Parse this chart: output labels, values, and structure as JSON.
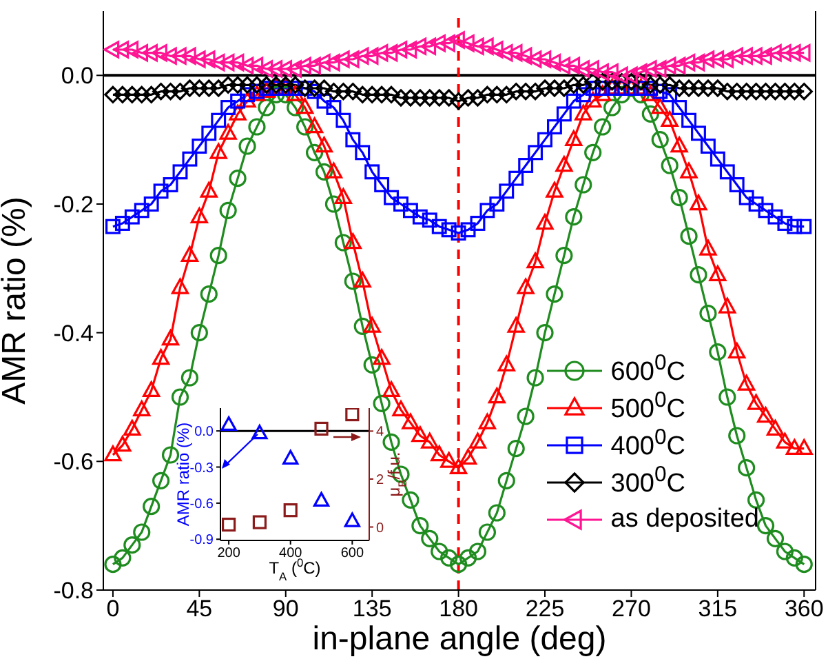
{
  "chart_data": [
    {
      "type": "line",
      "xlabel": "in-plane angle (deg)",
      "ylabel": "AMR ratio (%)",
      "x": [
        0,
        5,
        10,
        15,
        20,
        25,
        30,
        35,
        40,
        45,
        50,
        55,
        60,
        65,
        70,
        75,
        80,
        85,
        90,
        95,
        100,
        105,
        110,
        115,
        120,
        125,
        130,
        135,
        140,
        145,
        150,
        155,
        160,
        165,
        170,
        175,
        180,
        185,
        190,
        195,
        200,
        205,
        210,
        215,
        220,
        225,
        230,
        235,
        240,
        245,
        250,
        255,
        260,
        265,
        270,
        275,
        280,
        285,
        290,
        295,
        300,
        305,
        310,
        315,
        320,
        325,
        330,
        335,
        340,
        345,
        350,
        355,
        360
      ],
      "xlim": [
        -5,
        366
      ],
      "xticks": [
        0,
        45,
        90,
        135,
        180,
        225,
        270,
        315,
        360
      ],
      "ylim": [
        -0.8,
        0.1
      ],
      "yticks": [
        -0.8,
        -0.6,
        -0.4,
        -0.2,
        {
          "value": 0,
          "label": "0.0"
        }
      ],
      "legend": "bottom right",
      "line_style": "solid",
      "ref_lines": [
        {
          "axis": "y",
          "value": 0,
          "color": "#000000",
          "line_style": "solid"
        },
        {
          "axis": "x",
          "value": 180,
          "color": "#ff0000",
          "line_style": "dashed"
        }
      ],
      "series": [
        {
          "name": "600$^{0}$C",
          "color": "#1f8c1f",
          "marker": "circle",
          "values": [
            -0.76,
            -0.75,
            -0.73,
            -0.71,
            -0.67,
            -0.63,
            -0.59,
            -0.5,
            -0.47,
            -0.4,
            -0.34,
            -0.28,
            -0.21,
            -0.16,
            -0.11,
            -0.08,
            -0.05,
            -0.03,
            -0.03,
            -0.05,
            -0.08,
            -0.12,
            -0.15,
            -0.2,
            -0.26,
            -0.32,
            -0.39,
            -0.45,
            -0.51,
            -0.57,
            -0.62,
            -0.66,
            -0.7,
            -0.72,
            -0.74,
            -0.75,
            -0.76,
            -0.75,
            -0.74,
            -0.71,
            -0.68,
            -0.63,
            -0.58,
            -0.53,
            -0.47,
            -0.4,
            -0.34,
            -0.28,
            -0.22,
            -0.17,
            -0.12,
            -0.08,
            -0.05,
            -0.03,
            -0.02,
            -0.03,
            -0.06,
            -0.1,
            -0.14,
            -0.19,
            -0.25,
            -0.31,
            -0.37,
            -0.43,
            -0.5,
            -0.56,
            -0.61,
            -0.66,
            -0.7,
            -0.72,
            -0.74,
            -0.75,
            -0.76
          ]
        },
        {
          "name": "500$^{0}$C",
          "color": "#ff0000",
          "marker": "triangle",
          "values": [
            -0.59,
            -0.575,
            -0.55,
            -0.52,
            -0.49,
            -0.44,
            -0.41,
            -0.33,
            -0.28,
            -0.22,
            -0.18,
            -0.12,
            -0.09,
            -0.06,
            -0.04,
            -0.03,
            -0.025,
            -0.02,
            -0.02,
            -0.03,
            -0.05,
            -0.08,
            -0.11,
            -0.15,
            -0.19,
            -0.26,
            -0.32,
            -0.39,
            -0.44,
            -0.49,
            -0.52,
            -0.54,
            -0.56,
            -0.57,
            -0.59,
            -0.6,
            -0.61,
            -0.595,
            -0.57,
            -0.54,
            -0.5,
            -0.45,
            -0.39,
            -0.33,
            -0.29,
            -0.23,
            -0.18,
            -0.14,
            -0.1,
            -0.06,
            -0.04,
            -0.03,
            -0.02,
            -0.02,
            -0.02,
            -0.02,
            -0.03,
            -0.05,
            -0.07,
            -0.11,
            -0.15,
            -0.2,
            -0.27,
            -0.31,
            -0.36,
            -0.43,
            -0.48,
            -0.51,
            -0.53,
            -0.55,
            -0.57,
            -0.58,
            -0.58
          ]
        },
        {
          "name": "400$^{0}$C",
          "color": "#0000ff",
          "marker": "square",
          "values": [
            -0.235,
            -0.23,
            -0.22,
            -0.21,
            -0.2,
            -0.18,
            -0.17,
            -0.15,
            -0.13,
            -0.11,
            -0.09,
            -0.07,
            -0.05,
            -0.04,
            -0.03,
            -0.025,
            -0.02,
            -0.02,
            -0.02,
            -0.02,
            -0.02,
            -0.025,
            -0.04,
            -0.05,
            -0.07,
            -0.1,
            -0.12,
            -0.15,
            -0.17,
            -0.19,
            -0.2,
            -0.21,
            -0.22,
            -0.225,
            -0.235,
            -0.24,
            -0.245,
            -0.24,
            -0.23,
            -0.21,
            -0.2,
            -0.18,
            -0.16,
            -0.14,
            -0.12,
            -0.1,
            -0.08,
            -0.06,
            -0.04,
            -0.03,
            -0.02,
            -0.02,
            -0.02,
            -0.02,
            -0.02,
            -0.02,
            -0.02,
            -0.025,
            -0.03,
            -0.05,
            -0.07,
            -0.09,
            -0.11,
            -0.13,
            -0.15,
            -0.17,
            -0.19,
            -0.2,
            -0.21,
            -0.22,
            -0.23,
            -0.235,
            -0.235
          ]
        },
        {
          "name": "300$^{0}$C",
          "color": "#000000",
          "marker": "diamond",
          "values": [
            -0.03,
            -0.03,
            -0.03,
            -0.03,
            -0.03,
            -0.025,
            -0.025,
            -0.025,
            -0.02,
            -0.02,
            -0.02,
            -0.02,
            -0.015,
            -0.015,
            -0.015,
            -0.015,
            -0.015,
            -0.015,
            -0.015,
            -0.015,
            -0.02,
            -0.02,
            -0.02,
            -0.025,
            -0.025,
            -0.025,
            -0.03,
            -0.03,
            -0.03,
            -0.03,
            -0.035,
            -0.035,
            -0.035,
            -0.035,
            -0.035,
            -0.035,
            -0.04,
            -0.035,
            -0.035,
            -0.03,
            -0.03,
            -0.03,
            -0.025,
            -0.025,
            -0.025,
            -0.02,
            -0.02,
            -0.02,
            -0.015,
            -0.015,
            -0.01,
            -0.01,
            -0.01,
            -0.01,
            -0.01,
            -0.01,
            -0.015,
            -0.015,
            -0.015,
            -0.02,
            -0.02,
            -0.02,
            -0.02,
            -0.02,
            -0.025,
            -0.025,
            -0.025,
            -0.025,
            -0.025,
            -0.025,
            -0.025,
            -0.025,
            -0.025
          ]
        },
        {
          "name": "as deposited",
          "color": "#ff1493",
          "marker": "triangle-left",
          "values": [
            0.04,
            0.04,
            0.04,
            0.035,
            0.035,
            0.035,
            0.03,
            0.03,
            0.03,
            0.025,
            0.025,
            0.02,
            0.02,
            0.02,
            0.015,
            0.015,
            0.01,
            0.01,
            0.01,
            0.01,
            0.015,
            0.015,
            0.02,
            0.02,
            0.025,
            0.025,
            0.03,
            0.03,
            0.035,
            0.035,
            0.04,
            0.04,
            0.045,
            0.045,
            0.05,
            0.05,
            0.055,
            0.05,
            0.045,
            0.045,
            0.04,
            0.035,
            0.035,
            0.03,
            0.025,
            0.025,
            0.02,
            0.015,
            0.015,
            0.01,
            0.01,
            0.005,
            0.005,
            0,
            0,
            0.005,
            0.01,
            0.01,
            0.015,
            0.015,
            0.02,
            0.02,
            0.025,
            0.025,
            0.025,
            0.03,
            0.03,
            0.03,
            0.03,
            0.035,
            0.035,
            0.035,
            0.035
          ]
        }
      ]
    },
    {
      "type": "scatter",
      "xlabel": "T$_{A}$ ($^{0}$C)",
      "ylabel": "AMR ratio (%)",
      "y2label": "μ$_{B}$/f.u.",
      "x": [
        200,
        300,
        400,
        500,
        600
      ],
      "xlim": [
        173,
        655
      ],
      "xticks": [
        200,
        400,
        600
      ],
      "ylim": [
        -0.91,
        0.19
      ],
      "yticks": [
        -0.9,
        -0.6,
        -0.3,
        {
          "value": 0,
          "label": "0.0"
        }
      ],
      "y2lim": [
        -0.56,
        4.96
      ],
      "y2ticks": [
        0,
        2,
        4
      ],
      "legend": false,
      "ref_lines": [
        {
          "axis": "y",
          "value": 0,
          "color": "#000000",
          "line_style": "solid"
        }
      ],
      "series": [
        {
          "color": "#0000ff",
          "marker": "triangle",
          "values": [
            0.05,
            -0.02,
            -0.23,
            -0.58,
            -0.75
          ]
        },
        {
          "color": "#8b1a1a",
          "marker": "square",
          "axis": "y2",
          "values": [
            0.1,
            0.2,
            0.7,
            4.1,
            4.7
          ]
        }
      ]
    }
  ]
}
